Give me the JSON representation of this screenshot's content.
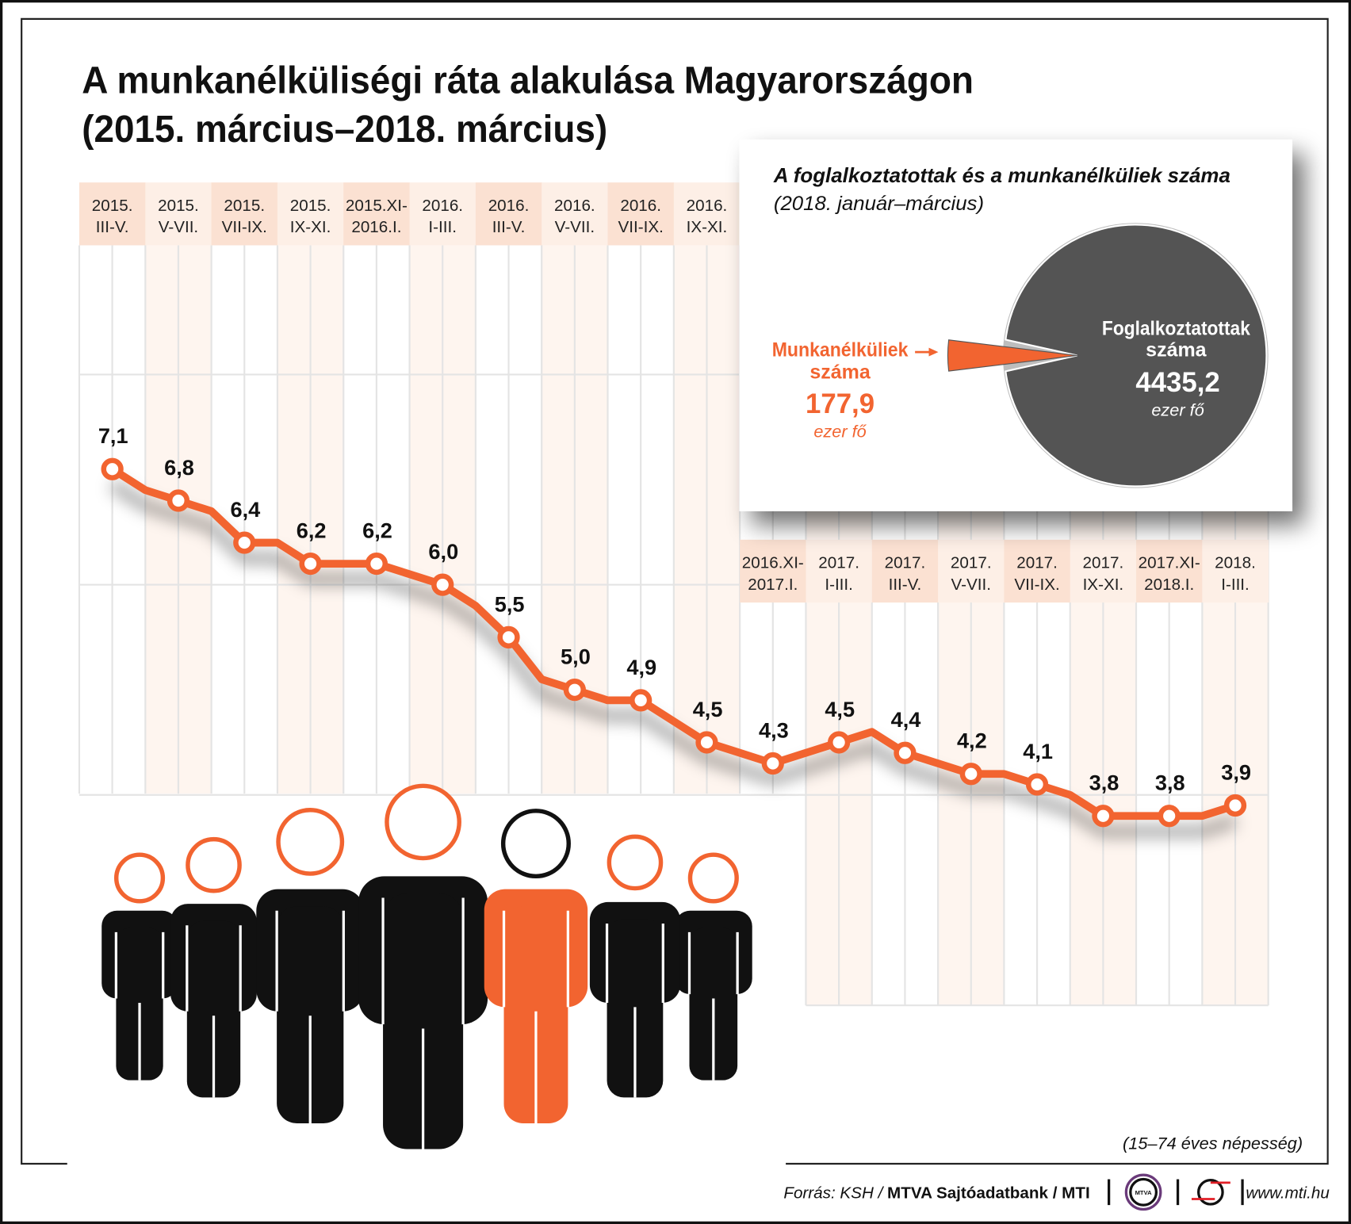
{
  "title": {
    "line1": "A munkanélküliségi ráta alakulása Magyarországon",
    "line2": "(2015. március–2018. március)"
  },
  "colors": {
    "accent": "#f26430",
    "dark": "#545454",
    "header_a": "#fbe1d2",
    "header_b": "#fdefe6"
  },
  "chart_data": [
    {
      "type": "line",
      "categories": [
        [
          "2015.",
          "III-V."
        ],
        [
          "2015.",
          "V-VII."
        ],
        [
          "2015.",
          "VII-IX."
        ],
        [
          "2015.",
          "IX-XI."
        ],
        [
          "2015.XI-",
          "2016.I."
        ],
        [
          "2016.",
          "I-III."
        ],
        [
          "2016.",
          "III-V."
        ],
        [
          "2016.",
          "V-VII."
        ],
        [
          "2016.",
          "VII-IX."
        ],
        [
          "2016.",
          "IX-XI."
        ],
        [
          "2016.XI-",
          "2017.I."
        ],
        [
          "2017.",
          "I-III."
        ],
        [
          "2017.",
          "III-V."
        ],
        [
          "2017.",
          "V-VII."
        ],
        [
          "2017.",
          "VII-IX."
        ],
        [
          "2017.",
          "IX-XI."
        ],
        [
          "2017.XI-",
          "2018.I."
        ],
        [
          "2018.",
          "I-III."
        ]
      ],
      "values": [
        7.1,
        6.8,
        6.4,
        6.2,
        6.2,
        6.0,
        5.5,
        5.0,
        4.9,
        4.5,
        4.3,
        4.5,
        4.4,
        4.2,
        4.1,
        3.8,
        3.8,
        3.9
      ],
      "value_labels": [
        "7,1",
        "6,8",
        "6,4",
        "6,2",
        "6,2",
        "6,0",
        "5,5",
        "5,0",
        "4,9",
        "4,5",
        "4,3",
        "4,5",
        "4,4",
        "4,2",
        "4,1",
        "3,8",
        "3,8",
        "3,9"
      ],
      "between_point_values": [
        6.9,
        6.7,
        6.4,
        6.2,
        6.1,
        5.8,
        5.1,
        4.9,
        4.7,
        4.4,
        4.4,
        4.6,
        4.3,
        4.2,
        4.0,
        3.8,
        3.8
      ],
      "gridlines": [
        4,
        6,
        8
      ],
      "grid": true
    },
    {
      "type": "pie",
      "title": "A foglalkoztatottak és a munkanélküliek száma",
      "subtitle": "(2018. január–március)",
      "slices": [
        {
          "name_line1": "Foglalkoztatottak",
          "name_line2": "száma",
          "value": 4435.2,
          "value_label": "4435,2",
          "unit": "ezer fő",
          "color": "#545454"
        },
        {
          "name_line1": "Munkanélküliek",
          "name_line2": "száma",
          "value": 177.9,
          "value_label": "177,9",
          "unit": "ezer fő",
          "color": "#f26430"
        }
      ]
    }
  ],
  "footnote": "(15–74 éves népesség)",
  "footer": {
    "source_prefix": "Forrás: KSH / ",
    "source_bold": "MTVA Sajtóadatbank / MTI",
    "mtva_logo_text": "MTVA",
    "website": "www.mti.hu"
  }
}
